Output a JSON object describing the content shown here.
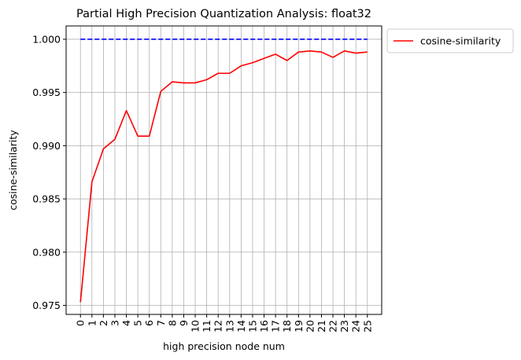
{
  "chart_data": {
    "type": "line",
    "title": "Partial High Precision Quantization Analysis: float32",
    "xlabel": "high precision node num",
    "ylabel": "cosine-similarity",
    "x": [
      0,
      1,
      2,
      3,
      4,
      5,
      6,
      7,
      8,
      9,
      10,
      11,
      12,
      13,
      14,
      15,
      16,
      17,
      18,
      19,
      20,
      21,
      22,
      23,
      24,
      25
    ],
    "x_tick_labels": [
      "0",
      "1",
      "2",
      "3",
      "4",
      "5",
      "6",
      "7",
      "8",
      "9",
      "10",
      "11",
      "12",
      "13",
      "14",
      "15",
      "16",
      "17",
      "18",
      "19",
      "20",
      "21",
      "22",
      "23",
      "24",
      "25"
    ],
    "series": [
      {
        "name": "cosine-similarity",
        "color": "#ff0000",
        "style": "solid",
        "values": [
          0.9753,
          0.9866,
          0.9897,
          0.9906,
          0.9933,
          0.9909,
          0.9909,
          0.9951,
          0.996,
          0.9959,
          0.9959,
          0.9962,
          0.9968,
          0.9968,
          0.9975,
          0.9978,
          0.9982,
          0.9986,
          0.998,
          0.9988,
          0.9989,
          0.9988,
          0.9983,
          0.9989,
          0.9987,
          0.9988
        ]
      },
      {
        "color": "#0000ff",
        "style": "dashed",
        "values": [
          1.0,
          1.0,
          1.0,
          1.0,
          1.0,
          1.0,
          1.0,
          1.0,
          1.0,
          1.0,
          1.0,
          1.0,
          1.0,
          1.0,
          1.0,
          1.0,
          1.0,
          1.0,
          1.0,
          1.0,
          1.0,
          1.0,
          1.0,
          1.0,
          1.0,
          1.0
        ]
      }
    ],
    "y_ticks": [
      0.975,
      0.98,
      0.985,
      0.99,
      0.995,
      1.0
    ],
    "y_tick_labels": [
      "0.975",
      "0.980",
      "0.985",
      "0.990",
      "0.995",
      "1.000"
    ],
    "xlim": [
      -1.25,
      26.25
    ],
    "ylim": [
      0.97415,
      1.00125
    ],
    "grid": true,
    "legend_position": "outside-upper-right"
  }
}
